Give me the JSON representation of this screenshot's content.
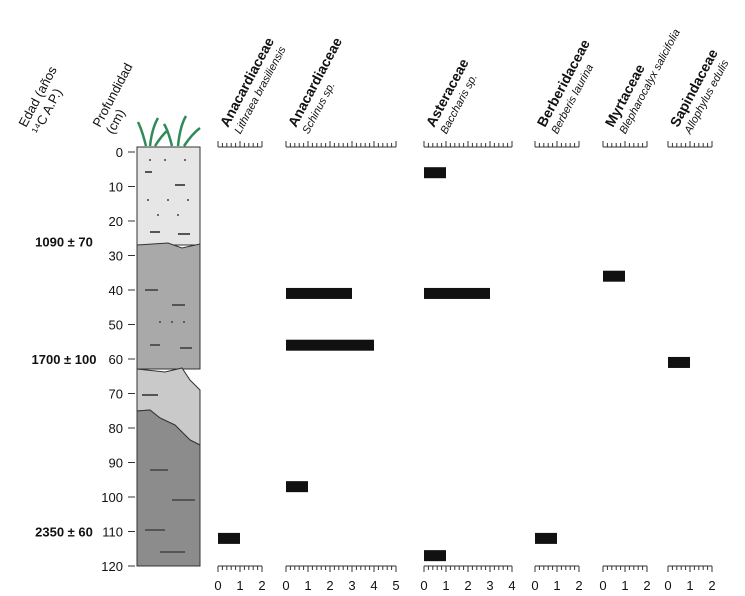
{
  "chart_data": {
    "type": "pollen-diagram",
    "age_label": [
      "Edad (años",
      "¹⁴C A.P.)"
    ],
    "y_label": [
      "Profundidad",
      "(cm)"
    ],
    "ylim": [
      0,
      120
    ],
    "yticks": [
      0,
      10,
      20,
      30,
      40,
      50,
      60,
      70,
      80,
      90,
      100,
      110,
      120
    ],
    "ages": [
      {
        "depth": 26,
        "label": "1090 ± 70"
      },
      {
        "depth": 60,
        "label": "1700 ± 100"
      },
      {
        "depth": 110,
        "label": "2350 ± 60"
      }
    ],
    "color": "#111111",
    "taxa": [
      {
        "family": "Anacardiaceae",
        "species": "Lithraea brasiliensis",
        "xlim": [
          0,
          2
        ],
        "xticks": [
          0,
          1,
          2
        ],
        "depths": [
          112
        ],
        "values": [
          1
        ]
      },
      {
        "family": "Anacardiaceae",
        "species": "Schinus sp.",
        "xlim": [
          0,
          5
        ],
        "xticks": [
          0,
          1,
          2,
          3,
          4,
          5
        ],
        "depths": [
          41,
          56,
          97
        ],
        "values": [
          3,
          4,
          1
        ]
      },
      {
        "family": "Asteraceae",
        "species": "Baccharis sp.",
        "xlim": [
          0,
          4
        ],
        "xticks": [
          0,
          1,
          2,
          3,
          4
        ],
        "depths": [
          6,
          41,
          117
        ],
        "values": [
          1,
          3,
          1
        ]
      },
      {
        "family": "Berberidaceae",
        "species": "Berberis laurina",
        "xlim": [
          0,
          2
        ],
        "xticks": [
          0,
          1,
          2
        ],
        "depths": [
          112
        ],
        "values": [
          1
        ]
      },
      {
        "family": "Myrtaceae",
        "species": "Blepharocalyx salicifolia",
        "xlim": [
          0,
          2
        ],
        "xticks": [
          0,
          1,
          2
        ],
        "depths": [
          36
        ],
        "values": [
          1
        ]
      },
      {
        "family": "Sapindaceae",
        "species": "Allophylus edulis",
        "xlim": [
          0,
          2
        ],
        "xticks": [
          0,
          1,
          2
        ],
        "depths": [
          61
        ],
        "values": [
          1
        ]
      }
    ]
  }
}
